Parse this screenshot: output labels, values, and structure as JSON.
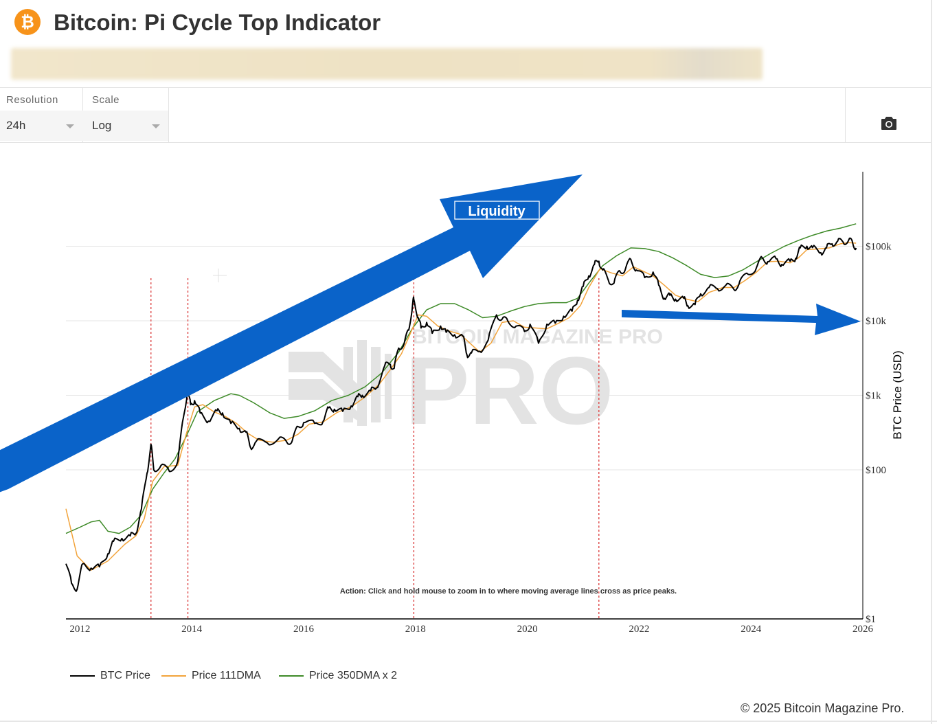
{
  "page": {
    "title": "Bitcoin: Pi Cycle Top Indicator",
    "logo_symbol": "₿",
    "copyright": "© 2025 Bitcoin Magazine Pro."
  },
  "controls": {
    "resolution": {
      "label": "Resolution",
      "value": "24h"
    },
    "scale": {
      "label": "Scale",
      "value": "Log"
    },
    "screenshot_icon": "camera-icon"
  },
  "colors": {
    "brand": "#f7931a",
    "btc_price": "#000000",
    "dma111": "#f2a33a",
    "dma350x2": "#3d8a27",
    "peak_marker": "#e05454",
    "annotation_arrow": "#0a63c9"
  },
  "chart_data": {
    "type": "line",
    "scale": "log",
    "xlabel": "",
    "ylabel": "BTC Price (USD)",
    "xlim": [
      2011.75,
      2026.0
    ],
    "ylim": [
      1,
      800000
    ],
    "x_ticks": [
      "2012",
      "2014",
      "2016",
      "2018",
      "2020",
      "2022",
      "2024",
      "2026"
    ],
    "y_ticks": [
      {
        "value": 1,
        "label": "$1"
      },
      {
        "value": 100,
        "label": "$100"
      },
      {
        "value": 1000,
        "label": "$1k"
      },
      {
        "value": 10000,
        "label": "$10k"
      },
      {
        "value": 100000,
        "label": "$100k"
      }
    ],
    "watermark": "BITCOIN MAGAZINE PRO",
    "action_text": "Action: Click and hold mouse to zoom in to where moving average lines cross as price peaks.",
    "annotations": {
      "liquidity_label": "Liquidity"
    },
    "cross_dates": [
      2013.27,
      2013.93,
      2017.97,
      2021.28
    ],
    "series": [
      {
        "name": "BTC Price",
        "points": [
          [
            2011.75,
            5.5
          ],
          [
            2011.85,
            3.0
          ],
          [
            2011.95,
            2.5
          ],
          [
            2012.05,
            5.5
          ],
          [
            2012.2,
            4.8
          ],
          [
            2012.35,
            5.0
          ],
          [
            2012.5,
            7.5
          ],
          [
            2012.6,
            11
          ],
          [
            2012.75,
            12
          ],
          [
            2012.9,
            13
          ],
          [
            2013.0,
            14
          ],
          [
            2013.1,
            30
          ],
          [
            2013.2,
            90
          ],
          [
            2013.27,
            220
          ],
          [
            2013.32,
            100
          ],
          [
            2013.45,
            115
          ],
          [
            2013.6,
            95
          ],
          [
            2013.75,
            130
          ],
          [
            2013.85,
            500
          ],
          [
            2013.92,
            1100
          ],
          [
            2013.98,
            750
          ],
          [
            2014.05,
            850
          ],
          [
            2014.15,
            580
          ],
          [
            2014.3,
            450
          ],
          [
            2014.45,
            620
          ],
          [
            2014.55,
            580
          ],
          [
            2014.7,
            420
          ],
          [
            2014.85,
            360
          ],
          [
            2014.97,
            320
          ],
          [
            2015.05,
            200
          ],
          [
            2015.15,
            240
          ],
          [
            2015.35,
            230
          ],
          [
            2015.55,
            260
          ],
          [
            2015.7,
            235
          ],
          [
            2015.8,
            250
          ],
          [
            2015.9,
            380
          ],
          [
            2016.0,
            430
          ],
          [
            2016.2,
            420
          ],
          [
            2016.35,
            450
          ],
          [
            2016.45,
            680
          ],
          [
            2016.55,
            650
          ],
          [
            2016.7,
            610
          ],
          [
            2016.85,
            720
          ],
          [
            2016.97,
            960
          ],
          [
            2017.05,
            1000
          ],
          [
            2017.2,
            1150
          ],
          [
            2017.3,
            1250
          ],
          [
            2017.45,
            2500
          ],
          [
            2017.55,
            2600
          ],
          [
            2017.62,
            2300
          ],
          [
            2017.7,
            4300
          ],
          [
            2017.8,
            5000
          ],
          [
            2017.88,
            7500
          ],
          [
            2017.95,
            17000
          ],
          [
            2017.97,
            19500
          ],
          [
            2018.05,
            11000
          ],
          [
            2018.1,
            8000
          ],
          [
            2018.2,
            9500
          ],
          [
            2018.3,
            6800
          ],
          [
            2018.45,
            8500
          ],
          [
            2018.55,
            7000
          ],
          [
            2018.7,
            6500
          ],
          [
            2018.85,
            6200
          ],
          [
            2018.92,
            3500
          ],
          [
            2019.0,
            3700
          ],
          [
            2019.15,
            3900
          ],
          [
            2019.3,
            5500
          ],
          [
            2019.45,
            12000
          ],
          [
            2019.55,
            10500
          ],
          [
            2019.65,
            10000
          ],
          [
            2019.8,
            8500
          ],
          [
            2019.95,
            7200
          ],
          [
            2020.05,
            9000
          ],
          [
            2020.2,
            5000
          ],
          [
            2020.35,
            9000
          ],
          [
            2020.5,
            9300
          ],
          [
            2020.65,
            11500
          ],
          [
            2020.8,
            13500
          ],
          [
            2020.9,
            19000
          ],
          [
            2021.0,
            29000
          ],
          [
            2021.1,
            40000
          ],
          [
            2021.2,
            57000
          ],
          [
            2021.28,
            63000
          ],
          [
            2021.35,
            48000
          ],
          [
            2021.45,
            35000
          ],
          [
            2021.55,
            32000
          ],
          [
            2021.65,
            47000
          ],
          [
            2021.75,
            48000
          ],
          [
            2021.85,
            67000
          ],
          [
            2021.95,
            48000
          ],
          [
            2022.1,
            38000
          ],
          [
            2022.25,
            45000
          ],
          [
            2022.35,
            30000
          ],
          [
            2022.45,
            20000
          ],
          [
            2022.55,
            22000
          ],
          [
            2022.65,
            19500
          ],
          [
            2022.8,
            20000
          ],
          [
            2022.87,
            16000
          ],
          [
            2023.0,
            16500
          ],
          [
            2023.1,
            23000
          ],
          [
            2023.25,
            28000
          ],
          [
            2023.4,
            27000
          ],
          [
            2023.55,
            30000
          ],
          [
            2023.7,
            26000
          ],
          [
            2023.8,
            34000
          ],
          [
            2023.95,
            42000
          ],
          [
            2024.1,
            52000
          ],
          [
            2024.2,
            70000
          ],
          [
            2024.3,
            62000
          ],
          [
            2024.45,
            68000
          ],
          [
            2024.55,
            57000
          ],
          [
            2024.7,
            63000
          ],
          [
            2024.8,
            69000
          ],
          [
            2024.88,
            95000
          ],
          [
            2025.0,
            100000
          ],
          [
            2025.1,
            96000
          ],
          [
            2025.25,
            82000
          ],
          [
            2025.35,
            95000
          ],
          [
            2025.45,
            108000
          ],
          [
            2025.55,
            117000
          ],
          [
            2025.65,
            113000
          ],
          [
            2025.75,
            122000
          ],
          [
            2025.82,
            110000
          ],
          [
            2025.88,
            95000
          ]
        ]
      },
      {
        "name": "Price 111DMA",
        "points": [
          [
            2011.75,
            30
          ],
          [
            2011.95,
            7
          ],
          [
            2012.2,
            4.5
          ],
          [
            2012.5,
            6
          ],
          [
            2012.8,
            10
          ],
          [
            2013.0,
            13
          ],
          [
            2013.15,
            22
          ],
          [
            2013.3,
            70
          ],
          [
            2013.5,
            110
          ],
          [
            2013.75,
            115
          ],
          [
            2013.9,
            300
          ],
          [
            2014.05,
            700
          ],
          [
            2014.2,
            750
          ],
          [
            2014.4,
            600
          ],
          [
            2014.6,
            520
          ],
          [
            2014.8,
            420
          ],
          [
            2015.0,
            310
          ],
          [
            2015.2,
            250
          ],
          [
            2015.45,
            235
          ],
          [
            2015.7,
            250
          ],
          [
            2015.9,
            300
          ],
          [
            2016.1,
            410
          ],
          [
            2016.35,
            440
          ],
          [
            2016.6,
            590
          ],
          [
            2016.85,
            700
          ],
          [
            2017.1,
            950
          ],
          [
            2017.35,
            1400
          ],
          [
            2017.55,
            2200
          ],
          [
            2017.75,
            3600
          ],
          [
            2017.9,
            6500
          ],
          [
            2018.05,
            12000
          ],
          [
            2018.2,
            11500
          ],
          [
            2018.4,
            8500
          ],
          [
            2018.6,
            7300
          ],
          [
            2018.8,
            6600
          ],
          [
            2019.0,
            4800
          ],
          [
            2019.15,
            3800
          ],
          [
            2019.35,
            5000
          ],
          [
            2019.55,
            9500
          ],
          [
            2019.75,
            10000
          ],
          [
            2019.95,
            8200
          ],
          [
            2020.15,
            8000
          ],
          [
            2020.35,
            7800
          ],
          [
            2020.55,
            9200
          ],
          [
            2020.75,
            11000
          ],
          [
            2020.95,
            16000
          ],
          [
            2021.1,
            28000
          ],
          [
            2021.3,
            50000
          ],
          [
            2021.5,
            44000
          ],
          [
            2021.7,
            40000
          ],
          [
            2021.9,
            53000
          ],
          [
            2022.05,
            47000
          ],
          [
            2022.25,
            40000
          ],
          [
            2022.45,
            30000
          ],
          [
            2022.65,
            22000
          ],
          [
            2022.85,
            19500
          ],
          [
            2023.05,
            18000
          ],
          [
            2023.25,
            24000
          ],
          [
            2023.5,
            28000
          ],
          [
            2023.7,
            28000
          ],
          [
            2023.9,
            35000
          ],
          [
            2024.1,
            45000
          ],
          [
            2024.3,
            62000
          ],
          [
            2024.5,
            63000
          ],
          [
            2024.7,
            60000
          ],
          [
            2024.85,
            70000
          ],
          [
            2025.0,
            90000
          ],
          [
            2025.2,
            92000
          ],
          [
            2025.4,
            95000
          ],
          [
            2025.6,
            108000
          ],
          [
            2025.75,
            112000
          ],
          [
            2025.88,
            110000
          ]
        ]
      },
      {
        "name": "Price 350DMA x 2",
        "points": [
          [
            2011.75,
            14
          ],
          [
            2012.0,
            17
          ],
          [
            2012.2,
            20
          ],
          [
            2012.35,
            21
          ],
          [
            2012.5,
            15
          ],
          [
            2012.7,
            14
          ],
          [
            2012.9,
            17
          ],
          [
            2013.1,
            25
          ],
          [
            2013.3,
            55
          ],
          [
            2013.5,
            90
          ],
          [
            2013.7,
            140
          ],
          [
            2013.9,
            280
          ],
          [
            2014.1,
            600
          ],
          [
            2014.4,
            850
          ],
          [
            2014.7,
            1050
          ],
          [
            2014.85,
            1000
          ],
          [
            2015.1,
            800
          ],
          [
            2015.4,
            580
          ],
          [
            2015.65,
            490
          ],
          [
            2015.9,
            520
          ],
          [
            2016.2,
            620
          ],
          [
            2016.5,
            850
          ],
          [
            2016.8,
            1000
          ],
          [
            2017.1,
            1300
          ],
          [
            2017.4,
            2000
          ],
          [
            2017.7,
            3800
          ],
          [
            2017.95,
            8000
          ],
          [
            2018.2,
            14000
          ],
          [
            2018.45,
            17000
          ],
          [
            2018.7,
            17000
          ],
          [
            2018.95,
            14000
          ],
          [
            2019.2,
            11000
          ],
          [
            2019.45,
            11500
          ],
          [
            2019.7,
            13500
          ],
          [
            2019.95,
            15500
          ],
          [
            2020.2,
            17000
          ],
          [
            2020.45,
            17500
          ],
          [
            2020.7,
            17500
          ],
          [
            2020.9,
            20000
          ],
          [
            2021.1,
            32000
          ],
          [
            2021.35,
            55000
          ],
          [
            2021.6,
            75000
          ],
          [
            2021.85,
            95000
          ],
          [
            2022.1,
            93000
          ],
          [
            2022.35,
            85000
          ],
          [
            2022.6,
            70000
          ],
          [
            2022.85,
            55000
          ],
          [
            2023.1,
            42000
          ],
          [
            2023.35,
            38000
          ],
          [
            2023.6,
            40000
          ],
          [
            2023.85,
            48000
          ],
          [
            2024.1,
            62000
          ],
          [
            2024.35,
            80000
          ],
          [
            2024.6,
            100000
          ],
          [
            2024.85,
            120000
          ],
          [
            2025.1,
            140000
          ],
          [
            2025.35,
            160000
          ],
          [
            2025.6,
            175000
          ],
          [
            2025.88,
            200000
          ]
        ]
      }
    ]
  }
}
